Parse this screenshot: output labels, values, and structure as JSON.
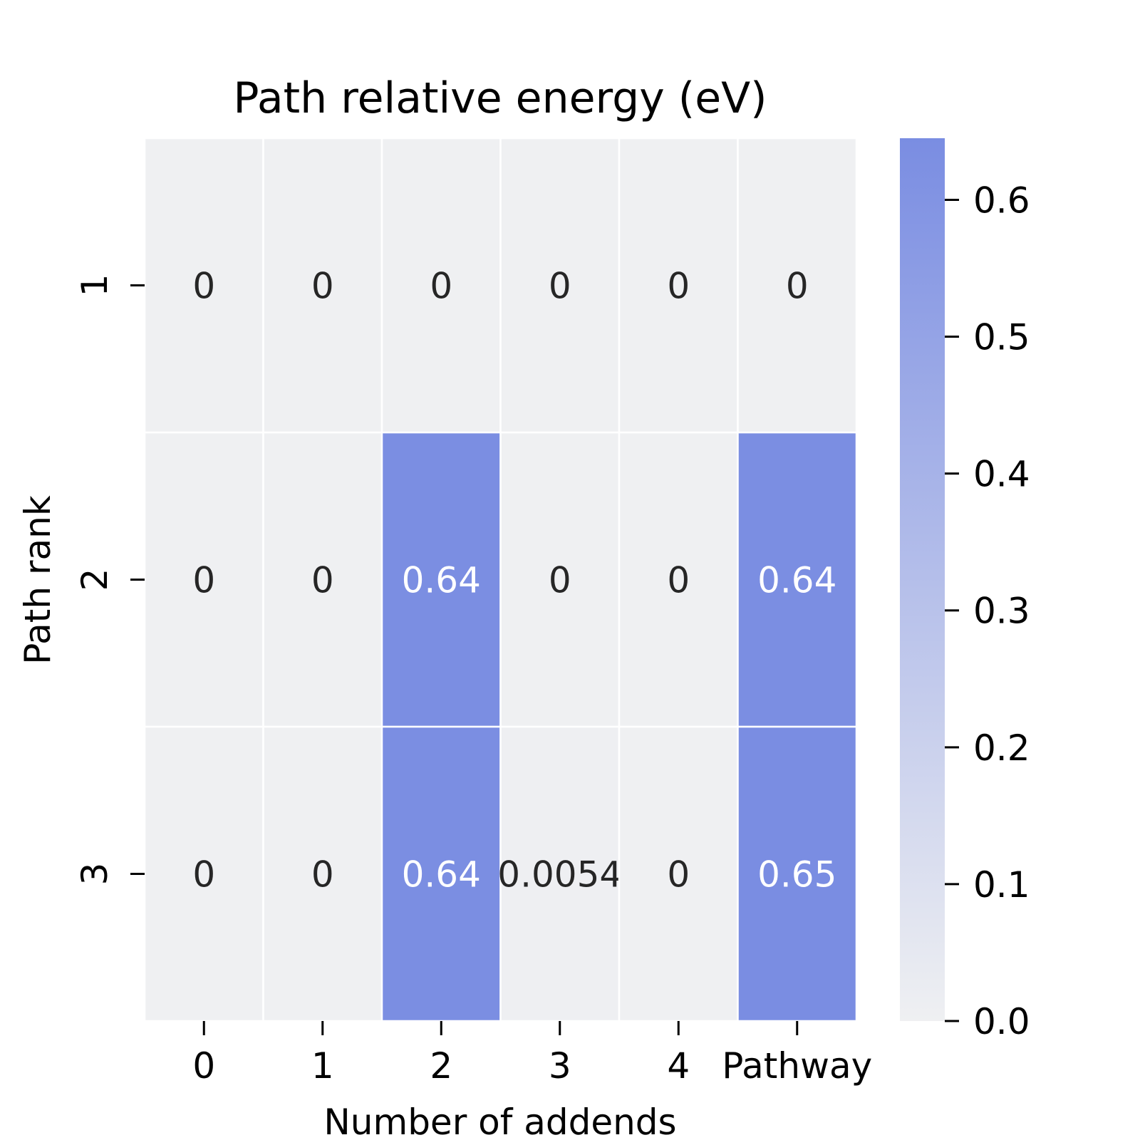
{
  "chart_data": {
    "type": "heatmap",
    "title": "Path relative energy (eV)",
    "xlabel": "Number of addends",
    "ylabel": "Path rank",
    "x_categories": [
      "0",
      "1",
      "2",
      "3",
      "4",
      "Pathway"
    ],
    "y_categories": [
      "1",
      "2",
      "3"
    ],
    "values": [
      [
        0,
        0,
        0,
        0,
        0,
        0
      ],
      [
        0,
        0,
        0.64,
        0,
        0,
        0.64
      ],
      [
        0,
        0,
        0.64,
        0.0054,
        0,
        0.65
      ]
    ],
    "cell_labels": [
      [
        "0",
        "0",
        "0",
        "0",
        "0",
        "0"
      ],
      [
        "0",
        "0",
        "0.64",
        "0",
        "0",
        "0.64"
      ],
      [
        "0",
        "0",
        "0.64",
        "0.0054",
        "0",
        "0.65"
      ]
    ],
    "colorbar": {
      "vmin": 0.0,
      "vmax": 0.645,
      "ticks": [
        0.0,
        0.1,
        0.2,
        0.3,
        0.4,
        0.5,
        0.6
      ],
      "tick_labels": [
        "0.0",
        "0.1",
        "0.2",
        "0.3",
        "0.4",
        "0.5",
        "0.6"
      ],
      "color_low": "#eff0f2",
      "color_high": "#7a8de2"
    },
    "grid": false,
    "legend": "colorbar-right"
  }
}
